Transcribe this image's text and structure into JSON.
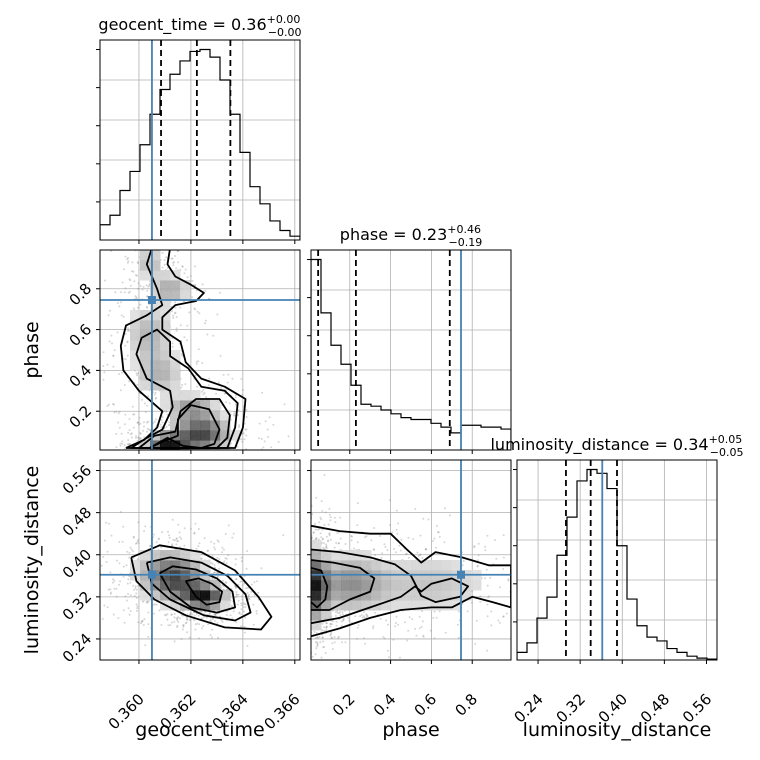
{
  "chart_data": {
    "type": "corner",
    "parameters": [
      "geocent_time",
      "phase",
      "luminosity_distance"
    ],
    "truth": {
      "geocent_time": 0.3605,
      "phase": 0.745,
      "luminosity_distance": 0.362
    },
    "ranges": {
      "geocent_time": [
        0.3585,
        0.3662
      ],
      "phase": [
        0.01,
        0.99
      ],
      "luminosity_distance": [
        0.2,
        0.58
      ]
    },
    "ticks": {
      "geocent_time": [
        0.36,
        0.362,
        0.364,
        0.366
      ],
      "phase": [
        0.2,
        0.4,
        0.6,
        0.8
      ],
      "luminosity_distance": [
        0.24,
        0.32,
        0.4,
        0.48,
        0.56
      ]
    },
    "tick_labels": {
      "geocent_time": [
        "0.360",
        "0.362",
        "0.364",
        "0.366"
      ],
      "phase": [
        "0.2",
        "0.4",
        "0.6",
        "0.8"
      ],
      "luminosity_distance": [
        "0.24",
        "0.32",
        "0.40",
        "0.48",
        "0.56"
      ]
    },
    "marginals": {
      "geocent_time": {
        "title_name": "geocent_time",
        "title_value": "0.36",
        "err_plus": "+0.00",
        "err_minus": "−0.00",
        "quantiles": [
          0.36085,
          0.36223,
          0.36352
        ],
        "bin_edges": [
          0.3585,
          0.358885,
          0.35927,
          0.359655,
          0.36004,
          0.360425,
          0.36081,
          0.361195,
          0.36158,
          0.361965,
          0.36235,
          0.362735,
          0.36312,
          0.363505,
          0.36389,
          0.364275,
          0.36466,
          0.365045,
          0.36543,
          0.365815,
          0.3662
        ],
        "counts": [
          0.08,
          0.13,
          0.26,
          0.36,
          0.5,
          0.66,
          0.79,
          0.87,
          0.94,
          0.99,
          1.0,
          0.96,
          0.84,
          0.66,
          0.46,
          0.28,
          0.19,
          0.1,
          0.05,
          0.02
        ]
      },
      "phase": {
        "title_name": "phase",
        "title_value": "0.23",
        "err_plus": "+0.46",
        "err_minus": "−0.19",
        "quantiles": [
          0.045,
          0.23,
          0.69
        ],
        "bin_edges": [
          0.01,
          0.059,
          0.108,
          0.157,
          0.206,
          0.255,
          0.304,
          0.353,
          0.402,
          0.451,
          0.5,
          0.549,
          0.598,
          0.647,
          0.696,
          0.745,
          0.794,
          0.843,
          0.892,
          0.941,
          0.99
        ],
        "counts": [
          1.0,
          0.72,
          0.55,
          0.45,
          0.34,
          0.24,
          0.23,
          0.21,
          0.19,
          0.17,
          0.16,
          0.16,
          0.14,
          0.12,
          0.09,
          0.13,
          0.13,
          0.12,
          0.12,
          0.11
        ]
      },
      "luminosity_distance": {
        "title_name": "luminosity_distance",
        "title_value": "0.34",
        "err_plus": "+0.05",
        "err_minus": "−0.05",
        "quantiles": [
          0.293,
          0.34,
          0.39
        ],
        "bin_edges": [
          0.2,
          0.219,
          0.238,
          0.257,
          0.276,
          0.295,
          0.314,
          0.333,
          0.352,
          0.371,
          0.39,
          0.409,
          0.428,
          0.447,
          0.466,
          0.485,
          0.504,
          0.523,
          0.542,
          0.561,
          0.58
        ],
        "counts": [
          0.04,
          0.09,
          0.22,
          0.33,
          0.55,
          0.75,
          0.94,
          1.0,
          0.98,
          0.9,
          0.6,
          0.32,
          0.18,
          0.12,
          0.1,
          0.06,
          0.04,
          0.02,
          0.01,
          0.005
        ]
      }
    },
    "joint": [
      {
        "x": "geocent_time",
        "y": "phase",
        "density": [
          {
            "x": 0.3604,
            "y": 0.93,
            "sx": 0.0004,
            "sy": 0.05,
            "w": 0.35
          },
          {
            "x": 0.3612,
            "y": 0.8,
            "sx": 0.0005,
            "sy": 0.05,
            "w": 0.45
          },
          {
            "x": 0.3604,
            "y": 0.58,
            "sx": 0.0006,
            "sy": 0.09,
            "w": 0.4
          },
          {
            "x": 0.3608,
            "y": 0.38,
            "sx": 0.0006,
            "sy": 0.07,
            "w": 0.4
          },
          {
            "x": 0.362,
            "y": 0.22,
            "sx": 0.0006,
            "sy": 0.04,
            "w": 0.5
          },
          {
            "x": 0.3624,
            "y": 0.09,
            "sx": 0.0007,
            "sy": 0.06,
            "w": 1.0
          },
          {
            "x": 0.3611,
            "y": 0.04,
            "sx": 0.0005,
            "sy": 0.03,
            "w": 1.2
          }
        ],
        "contours": [
          [
            [
              0.3604,
              0.02
            ],
            [
              0.3611,
              0.07
            ],
            [
              0.3617,
              0.03
            ],
            [
              0.3624,
              0.02
            ],
            [
              0.3629,
              0.04
            ],
            [
              0.3631,
              0.11
            ],
            [
              0.3627,
              0.21
            ],
            [
              0.362,
              0.23
            ],
            [
              0.3615,
              0.16
            ],
            [
              0.3615,
              0.08
            ],
            [
              0.3609,
              0.05
            ],
            [
              0.3604,
              0.02
            ]
          ],
          [
            [
              0.36,
              0.02
            ],
            [
              0.3606,
              0.08
            ],
            [
              0.3614,
              0.1
            ],
            [
              0.3616,
              0.2
            ],
            [
              0.3622,
              0.26
            ],
            [
              0.3631,
              0.26
            ],
            [
              0.3635,
              0.18
            ],
            [
              0.3634,
              0.07
            ],
            [
              0.363,
              0.02
            ],
            [
              0.36,
              0.02
            ]
          ],
          [
            [
              0.3597,
              0.02
            ],
            [
              0.3603,
              0.07
            ],
            [
              0.3609,
              0.11
            ],
            [
              0.3613,
              0.22
            ],
            [
              0.3612,
              0.3
            ],
            [
              0.3603,
              0.36
            ],
            [
              0.3599,
              0.48
            ],
            [
              0.3601,
              0.56
            ],
            [
              0.3607,
              0.6
            ],
            [
              0.3612,
              0.54
            ],
            [
              0.3612,
              0.47
            ],
            [
              0.3619,
              0.41
            ],
            [
              0.3624,
              0.32
            ],
            [
              0.3633,
              0.3
            ],
            [
              0.3638,
              0.24
            ],
            [
              0.3637,
              0.12
            ],
            [
              0.3634,
              0.02
            ],
            [
              0.3597,
              0.02
            ]
          ],
          [
            [
              0.3595,
              0.02
            ],
            [
              0.3602,
              0.06
            ],
            [
              0.3607,
              0.12
            ],
            [
              0.3609,
              0.2
            ],
            [
              0.36,
              0.3
            ],
            [
              0.3594,
              0.4
            ],
            [
              0.3593,
              0.52
            ],
            [
              0.3595,
              0.62
            ],
            [
              0.3603,
              0.67
            ],
            [
              0.3609,
              0.72
            ],
            [
              0.3607,
              0.8
            ],
            [
              0.3603,
              0.92
            ],
            [
              0.3605,
              1.0
            ],
            [
              0.3612,
              1.0
            ],
            [
              0.3611,
              0.92
            ],
            [
              0.3614,
              0.86
            ],
            [
              0.362,
              0.82
            ],
            [
              0.3625,
              0.78
            ],
            [
              0.3622,
              0.74
            ],
            [
              0.3614,
              0.72
            ],
            [
              0.3609,
              0.66
            ],
            [
              0.3609,
              0.6
            ],
            [
              0.3616,
              0.54
            ],
            [
              0.3618,
              0.44
            ],
            [
              0.3624,
              0.36
            ],
            [
              0.3633,
              0.32
            ],
            [
              0.3641,
              0.26
            ],
            [
              0.364,
              0.12
            ],
            [
              0.3637,
              0.02
            ],
            [
              0.3595,
              0.02
            ]
          ]
        ]
      },
      {
        "x": "geocent_time",
        "y": "luminosity_distance",
        "density": [
          {
            "x": 0.3625,
            "y": 0.32,
            "sx": 0.0005,
            "sy": 0.015,
            "w": 1.0
          },
          {
            "x": 0.3615,
            "y": 0.35,
            "sx": 0.0007,
            "sy": 0.025,
            "w": 0.6
          },
          {
            "x": 0.361,
            "y": 0.37,
            "sx": 0.0008,
            "sy": 0.03,
            "w": 0.4
          }
        ],
        "contours": [
          [
            [
              0.3618,
              0.35
            ],
            [
              0.3622,
              0.32
            ],
            [
              0.3626,
              0.305
            ],
            [
              0.3631,
              0.31
            ],
            [
              0.3632,
              0.33
            ],
            [
              0.3628,
              0.345
            ],
            [
              0.3623,
              0.355
            ],
            [
              0.3618,
              0.35
            ]
          ],
          [
            [
              0.3608,
              0.365
            ],
            [
              0.3612,
              0.33
            ],
            [
              0.362,
              0.3
            ],
            [
              0.363,
              0.29
            ],
            [
              0.3637,
              0.3
            ],
            [
              0.3636,
              0.33
            ],
            [
              0.363,
              0.355
            ],
            [
              0.3622,
              0.372
            ],
            [
              0.3613,
              0.378
            ],
            [
              0.3608,
              0.365
            ]
          ],
          [
            [
              0.3603,
              0.385
            ],
            [
              0.3605,
              0.345
            ],
            [
              0.3612,
              0.315
            ],
            [
              0.3625,
              0.285
            ],
            [
              0.3637,
              0.275
            ],
            [
              0.3643,
              0.29
            ],
            [
              0.3641,
              0.325
            ],
            [
              0.3634,
              0.36
            ],
            [
              0.3624,
              0.385
            ],
            [
              0.3612,
              0.395
            ],
            [
              0.3603,
              0.385
            ]
          ],
          [
            [
              0.3597,
              0.395
            ],
            [
              0.3599,
              0.35
            ],
            [
              0.3606,
              0.315
            ],
            [
              0.3618,
              0.285
            ],
            [
              0.3633,
              0.262
            ],
            [
              0.3647,
              0.258
            ],
            [
              0.3651,
              0.282
            ],
            [
              0.3646,
              0.32
            ],
            [
              0.3637,
              0.37
            ],
            [
              0.3624,
              0.405
            ],
            [
              0.3608,
              0.418
            ],
            [
              0.3597,
              0.395
            ]
          ]
        ]
      },
      {
        "x": "phase",
        "y": "luminosity_distance",
        "density": [
          {
            "x": 0.03,
            "y": 0.34,
            "sx": 0.04,
            "sy": 0.04,
            "w": 1.0
          },
          {
            "x": 0.2,
            "y": 0.345,
            "sx": 0.12,
            "sy": 0.035,
            "w": 0.55
          },
          {
            "x": 0.6,
            "y": 0.345,
            "sx": 0.2,
            "sy": 0.04,
            "w": 0.3
          }
        ],
        "contours": [
          [
            [
              0.01,
              0.31
            ],
            [
              0.04,
              0.3
            ],
            [
              0.08,
              0.315
            ],
            [
              0.09,
              0.34
            ],
            [
              0.06,
              0.37
            ],
            [
              0.01,
              0.375
            ]
          ],
          [
            [
              0.01,
              0.295
            ],
            [
              0.1,
              0.295
            ],
            [
              0.2,
              0.315
            ],
            [
              0.3,
              0.33
            ],
            [
              0.32,
              0.355
            ],
            [
              0.25,
              0.375
            ],
            [
              0.12,
              0.385
            ],
            [
              0.01,
              0.39
            ]
          ],
          [
            [
              0.01,
              0.27
            ],
            [
              0.15,
              0.28
            ],
            [
              0.3,
              0.3
            ],
            [
              0.45,
              0.32
            ],
            [
              0.52,
              0.34
            ],
            [
              0.55,
              0.33
            ],
            [
              0.6,
              0.345
            ],
            [
              0.7,
              0.355
            ],
            [
              0.78,
              0.34
            ],
            [
              0.74,
              0.32
            ],
            [
              0.62,
              0.31
            ],
            [
              0.55,
              0.322
            ],
            [
              0.5,
              0.36
            ],
            [
              0.42,
              0.382
            ],
            [
              0.3,
              0.395
            ],
            [
              0.15,
              0.405
            ],
            [
              0.01,
              0.41
            ]
          ],
          [
            [
              0.01,
              0.245
            ],
            [
              0.15,
              0.26
            ],
            [
              0.3,
              0.28
            ],
            [
              0.45,
              0.295
            ],
            [
              0.6,
              0.3
            ],
            [
              0.7,
              0.3
            ],
            [
              0.8,
              0.32
            ],
            [
              0.9,
              0.31
            ],
            [
              0.99,
              0.3
            ],
            [
              0.99,
              0.38
            ],
            [
              0.88,
              0.38
            ],
            [
              0.75,
              0.395
            ],
            [
              0.62,
              0.405
            ],
            [
              0.55,
              0.385
            ],
            [
              0.48,
              0.41
            ],
            [
              0.4,
              0.44
            ],
            [
              0.3,
              0.44
            ],
            [
              0.15,
              0.445
            ],
            [
              0.01,
              0.455
            ]
          ]
        ]
      }
    ]
  }
}
